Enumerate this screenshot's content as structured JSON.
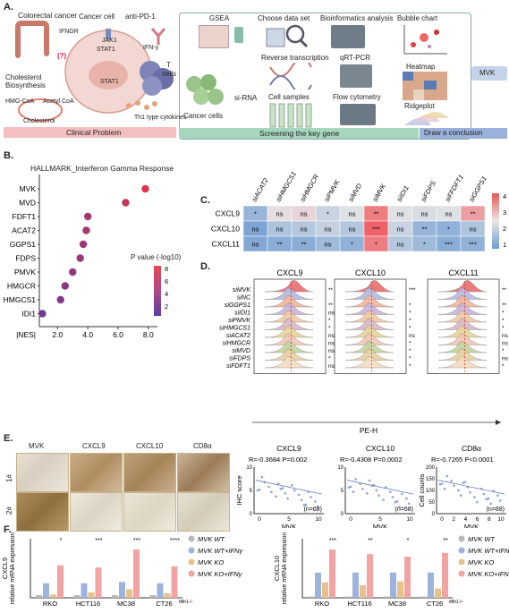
{
  "panel_a": {
    "letter": "A.",
    "colorectal": "Colorectal cancer",
    "cancer_cell": "Cancer cell",
    "anti_pd1": "anti-PD-1",
    "ifngr": "IFNGR",
    "jak1": "JAK1",
    "ifn": "IFN-γ",
    "stat1": "STAT1",
    "stat1b": "STAT1",
    "q": "(?)",
    "tcells_1": "T",
    "tcells_2": "cells",
    "th1": "Th1 type cytokines",
    "chol_biosyn_1": "Cholesterol",
    "chol_biosyn_2": "Biosynthesis",
    "hmg": "HMG-CoA",
    "acetyl": "Acetyl CoA",
    "cholesterol": "Cholesterol",
    "clinical": "Clinical Problem",
    "gsea": "GSEA",
    "choose": "Choose data set",
    "bioinfo": "Bioinformatics analysis",
    "bubble": "Bubble chart",
    "rt": "Reverse transcription",
    "qrt": "qRT-PCR",
    "heatmap": "Heatmap",
    "cancer_cells": "Cancer cells",
    "sirna": "si-RNA",
    "cell_samples": "Cell samples",
    "flow": "Flow cytometry",
    "ridge": "Ridgeplot",
    "mvk": "MVK",
    "screening": "Screening the key gene",
    "draw": "Draw a conclusion"
  },
  "panel_b": {
    "letter": "B.",
    "chart_data": {
      "type": "scatter",
      "title": "HALLMARK_Interferon Gamma Response",
      "xlabel": "|NES|",
      "categories": [
        "MVK",
        "MVD",
        "FDFT1",
        "ACAT2",
        "GGPS1",
        "FDPS",
        "PMVK",
        "HMGCR",
        "HMGCS1",
        "IDI1"
      ],
      "values": [
        7.8,
        6.5,
        4.0,
        3.9,
        3.7,
        3.5,
        3.0,
        2.5,
        2.2,
        1.0
      ],
      "pvalue": [
        8.5,
        7.0,
        5.0,
        4.8,
        4.5,
        4.2,
        3.5,
        3.0,
        2.5,
        1.2
      ],
      "xticks": [
        "2.0",
        "4.0",
        "6.0",
        "8.0"
      ],
      "xlim": [
        0.8,
        8.6
      ],
      "legend_title": "P value  (-log10)",
      "legend_ticks": [
        "8",
        "6",
        "4",
        "2"
      ]
    }
  },
  "panel_c": {
    "letter": "C.",
    "chart_data": {
      "type": "heatmap",
      "columns": [
        "siACAT2",
        "siHMGCS1",
        "siHMGCR",
        "siPMVK",
        "siMVD",
        "siMVK",
        "siIDI1",
        "siFDPS",
        "siFFDFT1",
        "siGGPS1"
      ],
      "rows": [
        "CXCL9",
        "CXCL10",
        "CXCL11"
      ],
      "labels": [
        [
          "*",
          "ns",
          "ns",
          "*",
          "ns",
          "**",
          "ns",
          "ns",
          "ns",
          "**"
        ],
        [
          "ns",
          "ns",
          "ns",
          "ns",
          "ns",
          "***",
          "ns",
          "**",
          "*",
          "ns"
        ],
        [
          "ns",
          "**",
          "**",
          "ns",
          "*",
          "*",
          "ns",
          "*",
          "***",
          "***"
        ]
      ],
      "values": [
        [
          1.6,
          2.8,
          2.9,
          2.3,
          2.6,
          3.9,
          2.6,
          2.5,
          2.6,
          3.5
        ],
        [
          1.2,
          1.9,
          2.0,
          2.2,
          2.0,
          4.2,
          2.3,
          1.6,
          1.5,
          1.9
        ],
        [
          1.3,
          1.4,
          1.4,
          1.7,
          1.5,
          3.9,
          2.0,
          1.7,
          1.4,
          1.5
        ]
      ],
      "colorbar": [
        "4",
        "3",
        "2",
        "1"
      ]
    }
  },
  "panel_d": {
    "letter": "D.",
    "conditions": [
      "siMVK",
      "siNC",
      "siGGPS1",
      "siIDI1",
      "siPMVK",
      "siHMGCS1",
      "siACAT2",
      "siHMGCR",
      "siMVD",
      "siFDPS",
      "siFDFT1"
    ],
    "plots": [
      {
        "title": "CXCL9",
        "sig": [
          "**",
          "",
          "**",
          "ns",
          "*",
          "*",
          "ns",
          "ns",
          "ns",
          "*",
          "ns"
        ]
      },
      {
        "title": "CXCL10",
        "sig": [
          "***",
          "",
          "*",
          "*",
          "*",
          "*",
          "ns",
          "*",
          "*",
          "*",
          "*"
        ]
      },
      {
        "title": "CXCL11",
        "sig": [
          "**",
          "",
          "**",
          "*",
          "*",
          "*",
          "ns",
          "ns",
          "*",
          "ns",
          "*"
        ]
      }
    ],
    "xlabel": "PE-H"
  },
  "panel_e": {
    "letter": "E.",
    "cols": [
      "MVK",
      "CXCL9",
      "CXCL10",
      "CD8α"
    ],
    "rows": [
      "1#",
      "2#"
    ],
    "scatter": [
      {
        "title": "CXCL9",
        "stat": "R=-0.3684 P=0.002",
        "n": "(n=68)",
        "xlabel": "MVK",
        "ylabel": "IHC score",
        "xticks": [
          "0",
          "5",
          "10"
        ],
        "yticks": [
          "0",
          "5",
          "10"
        ]
      },
      {
        "title": "CXCL10",
        "stat": "R=-0.4308 P=0.0002",
        "n": "(n=68)",
        "xlabel": "MVK",
        "xticks": [
          "0",
          "5",
          "10"
        ],
        "yticks": [
          "0",
          "5",
          "10"
        ]
      },
      {
        "title": "CD8α",
        "stat": "R=-0.7265 P<0.0001",
        "n": "(n=68)",
        "xlabel": "MVK",
        "ylabel": "Cell counts",
        "xticks": [
          "0",
          "2",
          "4",
          "6",
          "8",
          "10"
        ],
        "yticks": [
          "0",
          "50",
          "100",
          "150",
          "200"
        ]
      }
    ]
  },
  "panel_f": {
    "letter": "F.",
    "legend": [
      "MVK WT",
      "MVK WT+IFNγ",
      "MVK KO",
      "MVK KO+IFNγ"
    ],
    "colors": [
      "#b8b8b8",
      "#9db3dc",
      "#e8c08a",
      "#f2a3a3"
    ],
    "chart_data": [
      {
        "type": "bar",
        "ylabel_1": "CXCL9",
        "ylabel_2": "relative mRNA expression",
        "categories": [
          "RKO",
          "HCT116",
          "MC38",
          "CT26"
        ],
        "cat_suffix": "Mlh1-/-",
        "series": [
          {
            "name": "MVK WT",
            "values": [
              1,
              1,
              1,
              1
            ]
          },
          {
            "name": "MVK WT+IFNγ",
            "values": [
              30,
              30,
              35,
              30
            ]
          },
          {
            "name": "MVK KO",
            "values": [
              1.5,
              4,
              10,
              3
            ]
          },
          {
            "name": "MVK KO+IFNγ",
            "values": [
              150,
              130,
              330,
              140
            ]
          }
        ],
        "sig": [
          "*",
          "***",
          "***",
          "****"
        ],
        "yticks_low": [
          "0",
          "5",
          "10",
          "15",
          "20"
        ],
        "yticks_high": [
          "40",
          "200",
          "400"
        ]
      },
      {
        "type": "bar",
        "ylabel_1": "CXCL10",
        "ylabel_2": "relative mRNA expression",
        "categories": [
          "RKO",
          "HCT116",
          "MC38",
          "CT26"
        ],
        "cat_suffix": "Mlh1-/-",
        "series": [
          {
            "name": "MVK WT",
            "values": [
              1,
              1,
              1,
              1
            ]
          },
          {
            "name": "MVK WT+IFNγ",
            "values": [
              600,
              600,
              600,
              600
            ]
          },
          {
            "name": "MVK KO",
            "values": [
              220,
              150,
              250,
              80
            ]
          },
          {
            "name": "MVK KO+IFNγ",
            "values": [
              2200,
              1800,
              1600,
              1900
            ]
          }
        ],
        "sig": [
          "***",
          "**",
          "*",
          "**"
        ],
        "yticks_low": [
          "0",
          "200",
          "400",
          "600"
        ],
        "yticks_high": [
          "1000",
          "1500",
          "2000",
          "2500"
        ]
      }
    ]
  }
}
